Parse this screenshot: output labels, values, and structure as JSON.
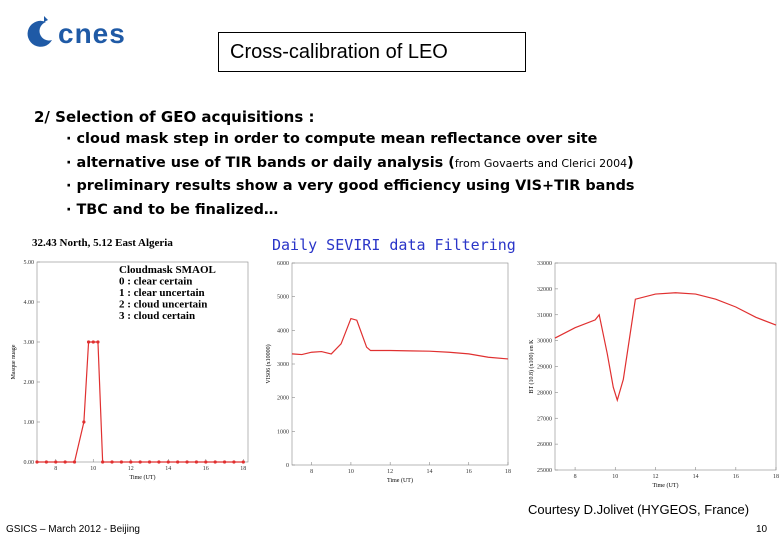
{
  "logo": "cnes",
  "title": "Cross-calibration of LEO",
  "heading": "2/ Selection of GEO acquisitions :",
  "bullets": [
    {
      "text": "cloud mask step in order to compute mean reflectance over site"
    },
    {
      "text": "alternative use of TIR bands or daily analysis (",
      "note": "from Govaerts and Clerici 2004",
      "end": ")"
    },
    {
      "text": "preliminary results show a very good efficiency using VIS+TIR bands"
    },
    {
      "text": "TBC and to be finalized…"
    }
  ],
  "caption": "Daily SEVIRI data Filtering",
  "credit": "Courtesy D.Jolivet (HYGEOS, France)",
  "footer": "GSICS – March 2012 - Beijing",
  "page": "10",
  "chart_data": [
    {
      "type": "line",
      "title": "32.43 North, 5.12 East   Algeria",
      "annotation": [
        "Cloudmask SMAOL",
        "0 : clear certain",
        "1 : clear uncertain",
        "2 : cloud uncertain",
        "3 : cloud certain"
      ],
      "xlabel": "Time (UT)",
      "ylabel": "Masque nuage",
      "color": "#e03030",
      "markers": true,
      "x": [
        7,
        7.5,
        8,
        8.5,
        9,
        9.5,
        9.75,
        10,
        10.25,
        10.5,
        11,
        11.5,
        12,
        12.5,
        13,
        13.5,
        14,
        14.5,
        15,
        15.5,
        16,
        16.5,
        17,
        17.5,
        18
      ],
      "values": [
        0,
        0,
        0,
        0,
        0,
        1,
        3,
        3,
        3,
        0,
        0,
        0,
        0,
        0,
        0,
        0,
        0,
        0,
        0,
        0,
        0,
        0,
        0,
        0,
        0
      ],
      "xlim": [
        7,
        18.25
      ],
      "xticks": [
        8,
        10,
        12,
        14,
        16,
        18
      ],
      "ylim": [
        0,
        5
      ],
      "yticks": [
        {
          "value": 0,
          "label": "0.00"
        },
        {
          "value": 1,
          "label": "1.00"
        },
        {
          "value": 2,
          "label": "2.00"
        },
        {
          "value": 3,
          "label": "3.00"
        },
        {
          "value": 4,
          "label": "4.00"
        },
        {
          "value": 5,
          "label": "5.00"
        }
      ]
    },
    {
      "type": "line",
      "xlabel": "Time (UT)",
      "ylabel": "VIS06 (x10000)",
      "color": "#e03030",
      "markers": false,
      "x": [
        7,
        7.5,
        8,
        8.5,
        9,
        9.5,
        10,
        10.3,
        10.8,
        11,
        12,
        13,
        14,
        15,
        16,
        17,
        18
      ],
      "values": [
        3300,
        3280,
        3350,
        3370,
        3300,
        3600,
        4350,
        4300,
        3500,
        3400,
        3400,
        3390,
        3380,
        3350,
        3300,
        3200,
        3150
      ],
      "xlim": [
        7,
        18
      ],
      "xticks": [
        8,
        10,
        12,
        14,
        16,
        18
      ],
      "ylim": [
        0,
        6000
      ],
      "yticks": [
        0,
        1000,
        2000,
        3000,
        4000,
        5000,
        6000
      ]
    },
    {
      "type": "line",
      "xlabel": "Time (UT)",
      "ylabel": "BT (10.8) (x100) en K",
      "color": "#e03030",
      "markers": false,
      "x": [
        7,
        8,
        9,
        9.2,
        9.6,
        9.9,
        10.1,
        10.4,
        11,
        12,
        13,
        14,
        15,
        16,
        17,
        18
      ],
      "values": [
        30100,
        30500,
        30800,
        31000,
        29500,
        28200,
        27700,
        28500,
        31600,
        31800,
        31850,
        31800,
        31600,
        31300,
        30900,
        30600
      ],
      "xlim": [
        7,
        18
      ],
      "xticks": [
        8,
        10,
        12,
        14,
        16,
        18
      ],
      "ylim": [
        25000,
        33000
      ],
      "yticks": [
        25000,
        26000,
        27000,
        28000,
        29000,
        30000,
        31000,
        32000,
        33000
      ]
    }
  ]
}
